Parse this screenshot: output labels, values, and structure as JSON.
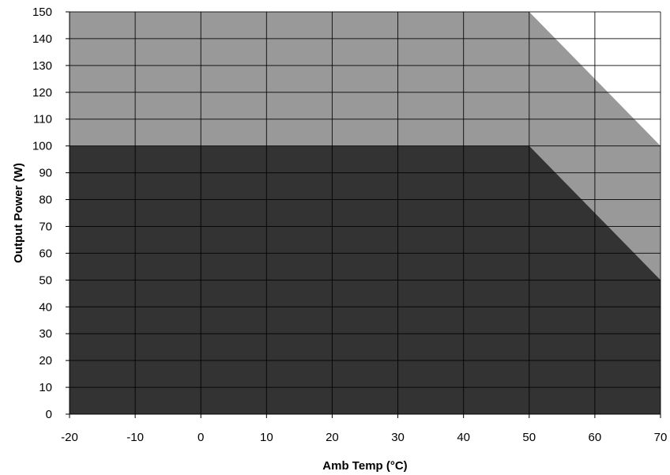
{
  "chart_data": {
    "type": "area",
    "xlabel": "Amb Temp (°C)",
    "ylabel": "Output Power (W)",
    "xlim": [
      -20,
      70
    ],
    "ylim": [
      0,
      150
    ],
    "x_ticks": [
      -20,
      -10,
      0,
      10,
      20,
      30,
      40,
      50,
      60,
      70
    ],
    "y_ticks": [
      0,
      10,
      20,
      30,
      40,
      50,
      60,
      70,
      80,
      90,
      100,
      110,
      120,
      130,
      140,
      150
    ],
    "grid": true,
    "series": [
      {
        "color": "#999999",
        "x": [
          -20,
          50,
          70
        ],
        "y": [
          150,
          150,
          100
        ]
      },
      {
        "color": "#333333",
        "x": [
          -20,
          50,
          70
        ],
        "y": [
          100,
          100,
          50
        ]
      }
    ]
  }
}
